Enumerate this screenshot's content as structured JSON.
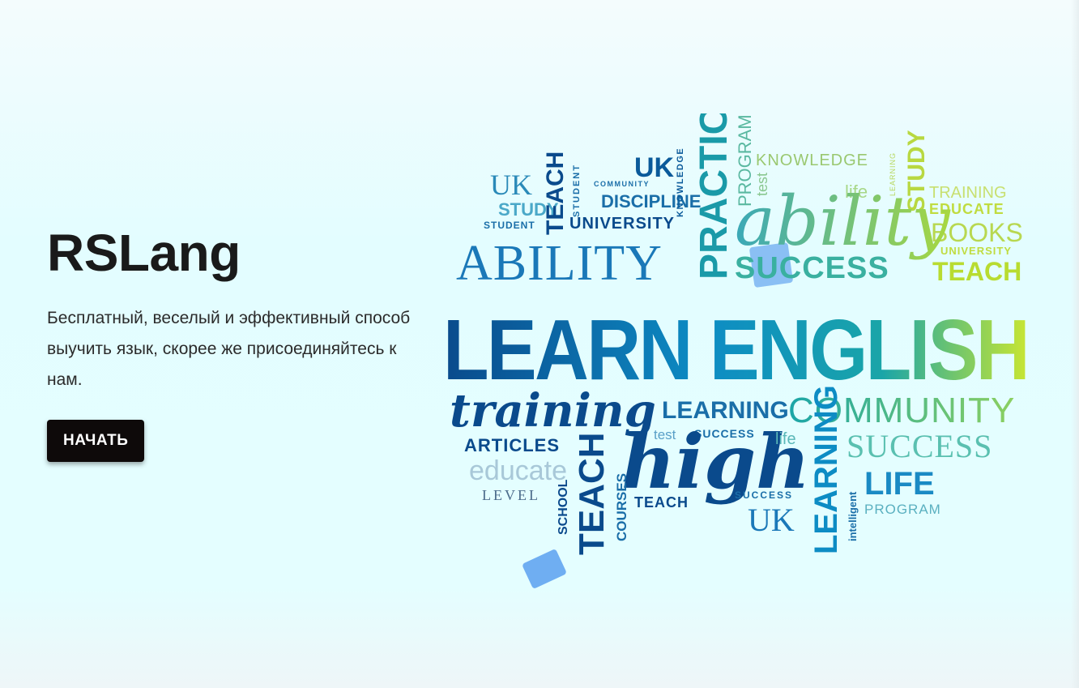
{
  "hero": {
    "title": "RSLang",
    "description": "Бесплатный, веселый и эффективный способ выучить язык, скорее же присоединяйтесь к нам.",
    "button_label": "НАЧАТЬ"
  },
  "word_cloud": {
    "words": [
      {
        "id": "uk-1",
        "text": "UK"
      },
      {
        "id": "study-1",
        "text": "STUDY"
      },
      {
        "id": "student-1",
        "text": "STUDENT"
      },
      {
        "id": "teach-1",
        "text": "TEACH"
      },
      {
        "id": "student-2",
        "text": "STUDENT"
      },
      {
        "id": "community-1",
        "text": "COMMUNITY"
      },
      {
        "id": "uk-2",
        "text": "UK"
      },
      {
        "id": "discipline",
        "text": "DISCIPLINE"
      },
      {
        "id": "university-1",
        "text": "UNIVERSITY"
      },
      {
        "id": "knowledge-1",
        "text": "KNOWLEDGE"
      },
      {
        "id": "practice",
        "text": "PRACTICE"
      },
      {
        "id": "program-1",
        "text": "PROGRAM"
      },
      {
        "id": "test-1",
        "text": "test"
      },
      {
        "id": "knowledge-2",
        "text": "KNOWLEDGE"
      },
      {
        "id": "life-1",
        "text": "life"
      },
      {
        "id": "learning-1",
        "text": "LEARNING"
      },
      {
        "id": "study-2",
        "text": "STUDY"
      },
      {
        "id": "training-1",
        "text": "TRAINING"
      },
      {
        "id": "educate-1",
        "text": "EDUCATE"
      },
      {
        "id": "books",
        "text": "BOOKS"
      },
      {
        "id": "university-2",
        "text": "UNIVERSITY"
      },
      {
        "id": "ability-1",
        "text": "ABILITY"
      },
      {
        "id": "ability-2",
        "text": "ability"
      },
      {
        "id": "success-1",
        "text": "SUCCESS"
      },
      {
        "id": "teach-2",
        "text": "TEACH"
      },
      {
        "id": "learn-english",
        "text": "LEARN ENGLISH"
      },
      {
        "id": "training-2",
        "text": "training"
      },
      {
        "id": "learning-2",
        "text": "LEARNING"
      },
      {
        "id": "community-2",
        "text": "COMMUNITY"
      },
      {
        "id": "test-2",
        "text": "test"
      },
      {
        "id": "success-2",
        "text": "SUCCESS"
      },
      {
        "id": "articles",
        "text": "ARTICLES"
      },
      {
        "id": "high",
        "text": "high"
      },
      {
        "id": "life-2",
        "text": "life"
      },
      {
        "id": "success-3",
        "text": "SUCCESS"
      },
      {
        "id": "educate-2",
        "text": "educate"
      },
      {
        "id": "teach-3",
        "text": "TEACH"
      },
      {
        "id": "level",
        "text": "LEVEL"
      },
      {
        "id": "school",
        "text": "SCHOOL"
      },
      {
        "id": "courses",
        "text": "COURSES"
      },
      {
        "id": "teach-4",
        "text": "TEACH"
      },
      {
        "id": "success-4",
        "text": "SUCCESS"
      },
      {
        "id": "uk-3",
        "text": "UK"
      },
      {
        "id": "learning-3",
        "text": "LEARNING"
      },
      {
        "id": "intelligent",
        "text": "intelligent"
      },
      {
        "id": "life-3",
        "text": "LIFE"
      },
      {
        "id": "program-2",
        "text": "PROGRAM"
      }
    ]
  },
  "colors": {
    "title": "#1a1a1a",
    "button_bg": "#0e0a0a",
    "button_text": "#ffffff",
    "cloud_dark": "#0a4a8c",
    "cloud_mid": "#0d8cc4",
    "cloud_teal": "#1aa5a8",
    "cloud_green": "#7ec84a",
    "cloud_lime": "#c8e632"
  }
}
